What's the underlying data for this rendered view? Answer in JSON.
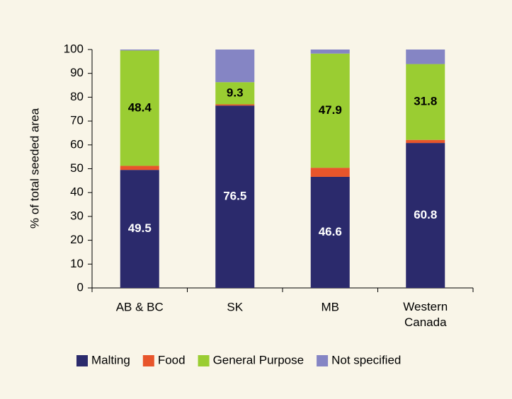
{
  "chart_data": {
    "type": "stacked_bar",
    "y_label": "% of total seeded area",
    "categories": [
      "AB & BC",
      "SK",
      "MB",
      "Western Canada"
    ],
    "series": [
      {
        "name": "Malting",
        "color": "#2b2a6c",
        "values": [
          49.5,
          76.5,
          46.6,
          60.8
        ],
        "value_labels": [
          "49.5",
          "76.5",
          "46.6",
          "60.8"
        ],
        "label_color": "#ffffff"
      },
      {
        "name": "Food",
        "color": "#e8552b",
        "values": [
          1.7,
          0.5,
          3.8,
          1.3
        ],
        "value_labels": [
          "1.7",
          null,
          "3.8",
          "1.3"
        ],
        "label_color": "#000000"
      },
      {
        "name": "General Purpose",
        "color": "#9acd32",
        "values": [
          48.4,
          9.3,
          47.9,
          31.8
        ],
        "value_labels": [
          "48.4",
          "9.3",
          "47.9",
          "31.8"
        ],
        "label_color": "#000000"
      },
      {
        "name": "Not specified",
        "color": "#8585c4",
        "values": [
          0.4,
          13.7,
          1.7,
          6.1
        ]
      }
    ],
    "ylim": [
      0,
      100
    ],
    "yticks": [
      0,
      10,
      20,
      30,
      40,
      50,
      60,
      70,
      80,
      90,
      100
    ],
    "legend": "bottom"
  }
}
